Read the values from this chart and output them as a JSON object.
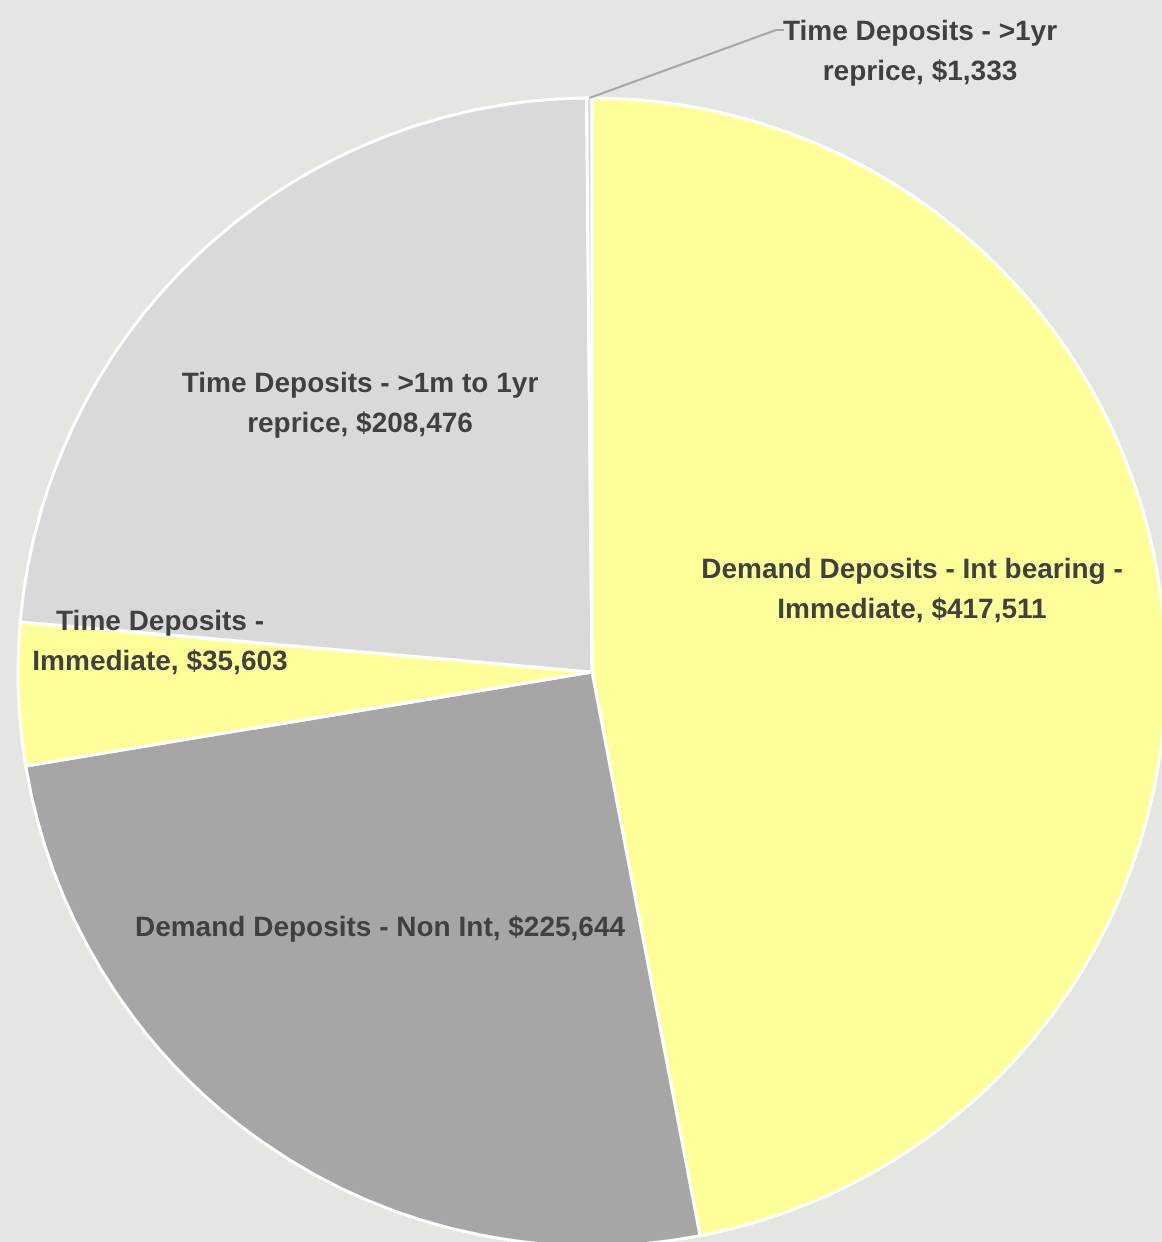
{
  "chart_data": {
    "type": "pie",
    "categories": [
      "Demand Deposits - Int bearing - Immediate",
      "Demand Deposits - Non Int",
      "Time Deposits - Immediate",
      "Time Deposits - >1m to 1yr reprice",
      "Time Deposits - >1yr reprice"
    ],
    "values": [
      417511,
      225644,
      35603,
      208476,
      1333
    ],
    "value_labels": [
      "$417,511",
      "$225,644",
      "$35,603",
      "$208,476",
      "$1,333"
    ],
    "colors": [
      "#ffff99",
      "#a6a6a6",
      "#ffff99",
      "#d9d9d9",
      "#d9d9d9"
    ]
  }
}
